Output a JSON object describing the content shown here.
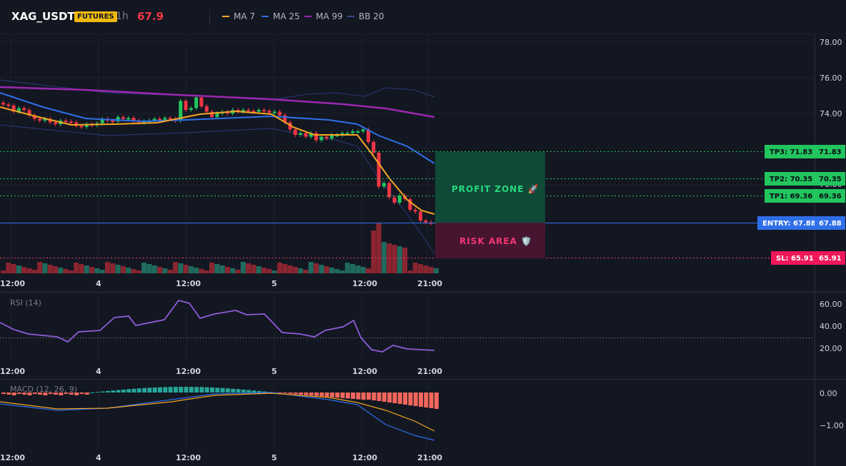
{
  "header": {
    "symbol": "XAG_USDT",
    "badge": "FUTURES",
    "timeframe": "1h",
    "last_price": "67.9",
    "legend": [
      {
        "label": "MA 7",
        "color": "#f5a623"
      },
      {
        "label": "MA 25",
        "color": "#2f6fe8"
      },
      {
        "label": "MA 99",
        "color": "#9c27b0"
      },
      {
        "label": "BB 20",
        "color": "#3a4a8c"
      }
    ]
  },
  "price_axis": {
    "ticks": [
      "78.00",
      "76.00",
      "74.00",
      "70.00"
    ]
  },
  "levels": {
    "tp3": {
      "tag": "TP3: 71.83",
      "price": "71.83",
      "value": 71.83
    },
    "tp2": {
      "tag": "TP2: 70.35",
      "price": "70.35",
      "value": 70.35
    },
    "tp1": {
      "tag": "TP1: 69.36",
      "price": "69.36",
      "value": 69.36
    },
    "entry": {
      "tag": "ENTRY: 67.88",
      "price": "67.88",
      "value": 67.88
    },
    "sl": {
      "tag": "SL: 65.91",
      "price": "65.91",
      "value": 65.91
    }
  },
  "zones": {
    "profit": "PROFIT ZONE 🚀",
    "risk": "RISK AREA 🛡️"
  },
  "time_axis": [
    "12:00",
    "4",
    "12:00",
    "5",
    "12:00",
    "21:00"
  ],
  "rsi": {
    "label": "RSI (14)",
    "ticks": [
      "60.00",
      "40.00",
      "20.00"
    ]
  },
  "macd": {
    "label": "MACD (12, 26, 9)",
    "ticks": [
      "0.00",
      "−1.00"
    ]
  },
  "colors": {
    "up": "#26a69a",
    "up_bright": "#22c55e",
    "down": "#f23645",
    "bg": "#131722",
    "grid": "#1e222d"
  }
}
